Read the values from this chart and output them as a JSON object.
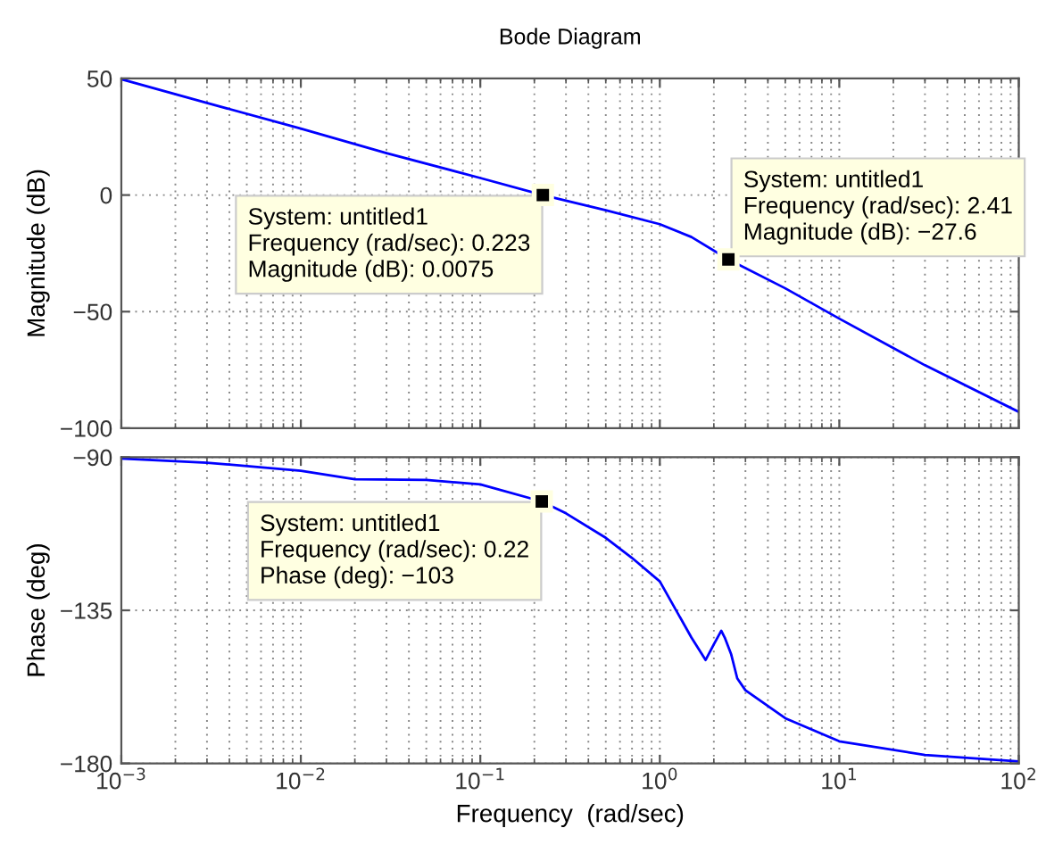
{
  "chart_data": [
    {
      "type": "line",
      "title": "Bode Diagram",
      "ylabel": "Magnitude (dB)",
      "log": "x",
      "grid": true,
      "tick_labels": "y",
      "xlim": [
        0.001,
        100
      ],
      "xticks": [
        {
          "value": 0.001,
          "label": null
        },
        {
          "value": 0.01,
          "label": null
        },
        {
          "value": 0.1,
          "label": null
        },
        {
          "value": 1,
          "label": null
        },
        {
          "value": 10,
          "label": null
        },
        {
          "value": 100,
          "label": null
        }
      ],
      "ylim": [
        -100,
        50
      ],
      "yticks": [
        {
          "value": -100,
          "label": "−100"
        },
        {
          "value": -50,
          "label": "−50"
        },
        0,
        50
      ],
      "x": [
        0.001,
        0.003,
        0.01,
        0.03,
        0.1,
        0.223,
        0.5,
        1,
        1.5,
        2.41,
        5,
        10,
        30,
        100
      ],
      "series": [
        {
          "color": "#0000ff",
          "values": [
            49.7,
            39.5,
            28.5,
            18,
            7.3,
            0,
            -6.5,
            -12.5,
            -18,
            -27.6,
            -40,
            -53,
            -73,
            -93
          ]
        }
      ],
      "annotations": [
        {
          "text": "System: untitled1\nFrequency (rad/sec): 0.223\nMagnitude (dB): 0.0075",
          "x": 0.223,
          "y": 0.0075
        },
        {
          "text": "System: untitled1\nFrequency (rad/sec): 2.41\nMagnitude (dB): −27.6",
          "x": 2.41,
          "y": -27.6
        }
      ]
    },
    {
      "type": "line",
      "xlabel": "Frequency  (rad/sec)",
      "ylabel": "Phase (deg)",
      "log": "x",
      "grid": true,
      "xlim": [
        0.001,
        100
      ],
      "xticks": [
        {
          "value": 0.001,
          "label": "10$^{−3}$"
        },
        {
          "value": 0.01,
          "label": "10$^{−2}$"
        },
        {
          "value": 0.1,
          "label": "10$^{−1}$"
        },
        {
          "value": 1,
          "label": "10$^{0}$"
        },
        {
          "value": 10,
          "label": "10$^{1}$"
        },
        {
          "value": 100,
          "label": "10$^{2}$"
        }
      ],
      "ylim": [
        -180,
        -90
      ],
      "yticks": [
        {
          "value": -180,
          "label": "−180"
        },
        {
          "value": -135,
          "label": "−135"
        },
        {
          "value": -90,
          "label": "−90"
        }
      ],
      "x": [
        0.001,
        0.003,
        0.01,
        0.02,
        0.05,
        0.1,
        0.22,
        0.3,
        0.5,
        0.7,
        1,
        1.5,
        1.8,
        2.0,
        2.2,
        2.3,
        2.5,
        2.7,
        3,
        5,
        10,
        30,
        100
      ],
      "series": [
        {
          "color": "#0000ff",
          "values": [
            -90.4,
            -91.6,
            -94,
            -96.5,
            -96.7,
            -98,
            -103,
            -106.5,
            -113.7,
            -119.6,
            -126.5,
            -143,
            -149.6,
            -145,
            -141,
            -143,
            -148,
            -155,
            -158.5,
            -166.7,
            -173.5,
            -177.5,
            -179.4
          ]
        }
      ],
      "annotations": [
        {
          "text": "System: untitled1\nFrequency (rad/sec): 0.22\nPhase (deg): −103",
          "x": 0.22,
          "y": -103
        }
      ]
    }
  ]
}
